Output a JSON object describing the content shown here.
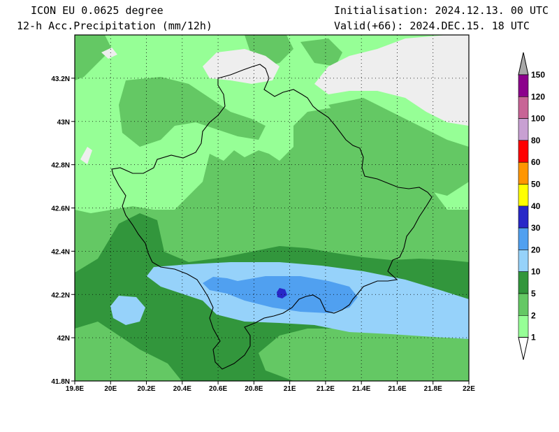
{
  "header": {
    "model": "ICON EU 0.0625 degree",
    "field": "12-h Acc.Precipitation (mm/12h)",
    "init": "Initialisation: 2024.12.13. 00 UTC",
    "valid": "Valid(+66): 2024.DEC.15. 18 UTC"
  },
  "map": {
    "lon_range": [
      19.8,
      22.0
    ],
    "lat_range": [
      41.8,
      43.4
    ],
    "grid": "dotted",
    "lat_labels": [
      "43.2N",
      "43N",
      "42.8N",
      "42.6N",
      "42.4N",
      "42.2N",
      "42N",
      "41.8N"
    ],
    "lon_labels": [
      "19.8E",
      "20E",
      "20.2E",
      "20.4E",
      "20.6E",
      "20.8E",
      "21E",
      "21.2E",
      "21.4E",
      "21.6E",
      "21.8E",
      "22E"
    ]
  },
  "colorbar": {
    "levels": [
      {
        "label": "150",
        "color": "#a8a8a8"
      },
      {
        "label": "120",
        "color": "#8c008c"
      },
      {
        "label": "100",
        "color": "#c86496"
      },
      {
        "label": "80",
        "color": "#c8a0d2"
      },
      {
        "label": "60",
        "color": "#ff0000"
      },
      {
        "label": "50",
        "color": "#ff9600"
      },
      {
        "label": "40",
        "color": "#ffe600"
      },
      {
        "label": "30",
        "color": "#ffff00"
      },
      {
        "label": "20",
        "color": "#2828c8"
      },
      {
        "label": "10",
        "color": "#50a0f0"
      },
      {
        "label": "5",
        "color": "#96d2fa"
      },
      {
        "label": "2",
        "color": "#32963c"
      },
      {
        "label": "1",
        "color": "#64c864"
      }
    ],
    "lowest_color": "#96ff96"
  },
  "colors": {
    "no_precip": "#eeeeee",
    "light_green": "#96ff96",
    "mid_green": "#64c864",
    "dark_green": "#32963c",
    "light_blue": "#96d2fa",
    "mid_blue": "#50a0f0",
    "dark_blue": "#2828c8"
  }
}
